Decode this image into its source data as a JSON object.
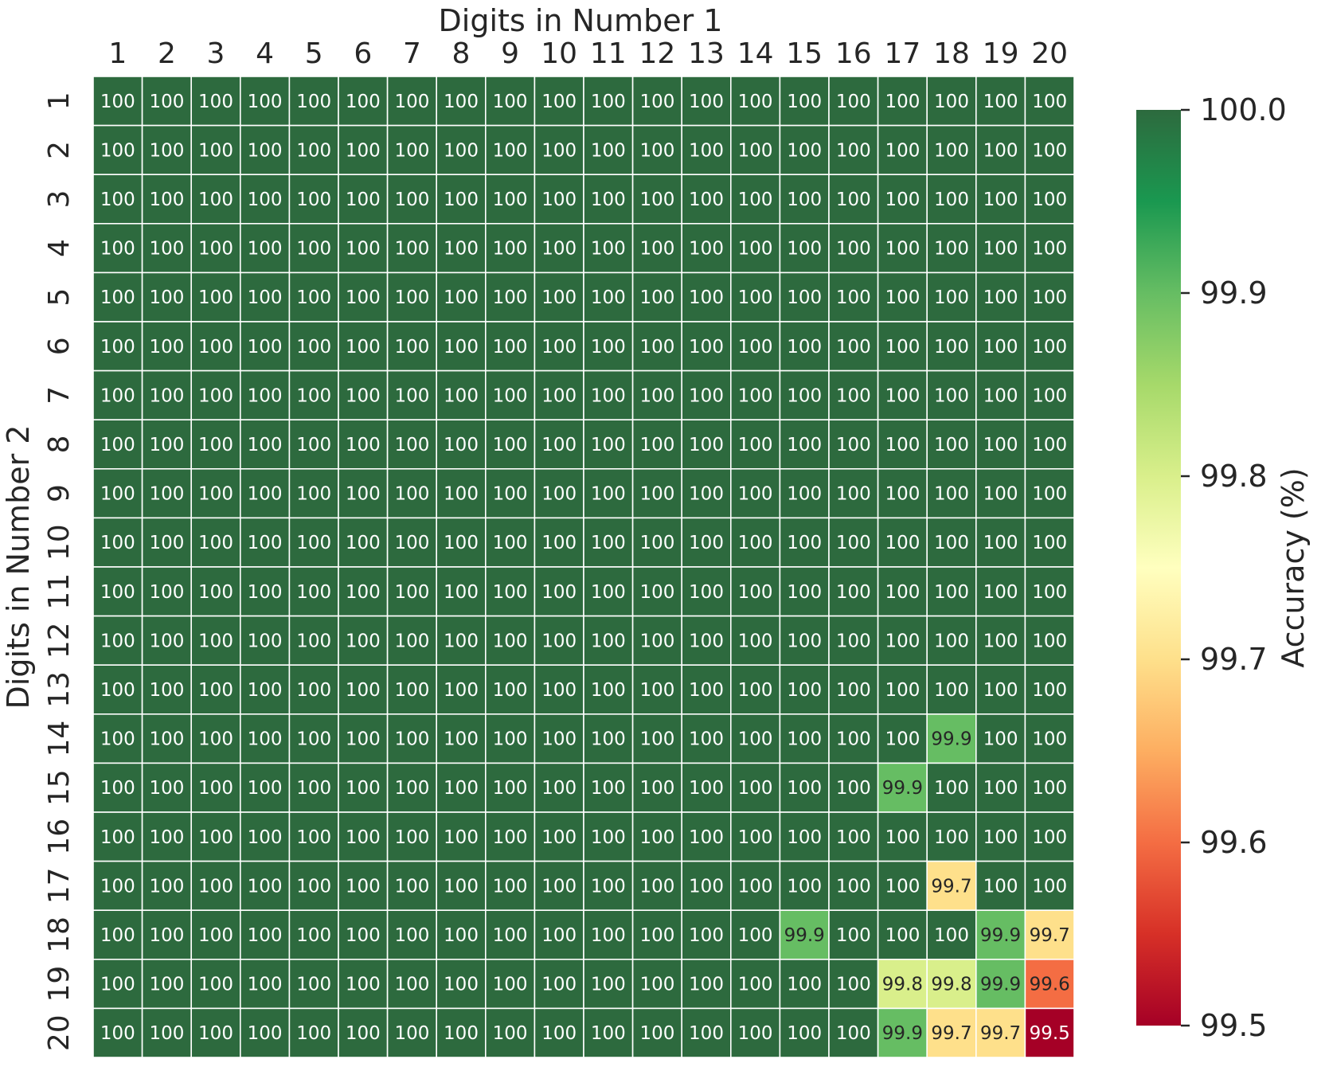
{
  "chart_data": {
    "type": "heatmap",
    "title": "",
    "xlabel": "Digits in Number 1",
    "ylabel": "Digits in Number 2",
    "x_categories": [
      "1",
      "2",
      "3",
      "4",
      "5",
      "6",
      "7",
      "8",
      "9",
      "10",
      "11",
      "12",
      "13",
      "14",
      "15",
      "16",
      "17",
      "18",
      "19",
      "20"
    ],
    "y_categories": [
      "1",
      "2",
      "3",
      "4",
      "5",
      "6",
      "7",
      "8",
      "9",
      "10",
      "11",
      "12",
      "13",
      "14",
      "15",
      "16",
      "17",
      "18",
      "19",
      "20"
    ],
    "default_value": 100,
    "exceptions": [
      {
        "row": "14",
        "col": "18",
        "value": 99.9,
        "label": "99.9"
      },
      {
        "row": "15",
        "col": "17",
        "value": 99.9,
        "label": "99.9"
      },
      {
        "row": "17",
        "col": "18",
        "value": 99.7,
        "label": "99.7"
      },
      {
        "row": "18",
        "col": "15",
        "value": 99.9,
        "label": "99.9"
      },
      {
        "row": "18",
        "col": "19",
        "value": 99.9,
        "label": "99.9"
      },
      {
        "row": "18",
        "col": "20",
        "value": 99.7,
        "label": "99.7"
      },
      {
        "row": "19",
        "col": "17",
        "value": 99.8,
        "label": "99.8"
      },
      {
        "row": "19",
        "col": "18",
        "value": 99.8,
        "label": "99.8"
      },
      {
        "row": "19",
        "col": "19",
        "value": 99.9,
        "label": "99.9"
      },
      {
        "row": "19",
        "col": "20",
        "value": 99.6,
        "label": "99.6"
      },
      {
        "row": "20",
        "col": "17",
        "value": 99.9,
        "label": "99.9"
      },
      {
        "row": "20",
        "col": "18",
        "value": 99.7,
        "label": "99.7"
      },
      {
        "row": "20",
        "col": "19",
        "value": 99.7,
        "label": "99.7"
      },
      {
        "row": "20",
        "col": "20",
        "value": 99.5,
        "label": "99.5"
      }
    ],
    "colorbar": {
      "label": "Accuracy (%)",
      "range": [
        99.5,
        100.0
      ],
      "ticks": [
        "100.0",
        "99.9",
        "99.8",
        "99.7",
        "99.6",
        "99.5"
      ],
      "colormap": "RdYlGn",
      "colors": [
        "#a50026",
        "#d73027",
        "#f46d43",
        "#fdae61",
        "#fee08b",
        "#ffffbf",
        "#d9ef8b",
        "#a6d96a",
        "#66bd63",
        "#1a9850",
        "#2d6a3e"
      ]
    },
    "grid_line_color": "#ffffff"
  }
}
